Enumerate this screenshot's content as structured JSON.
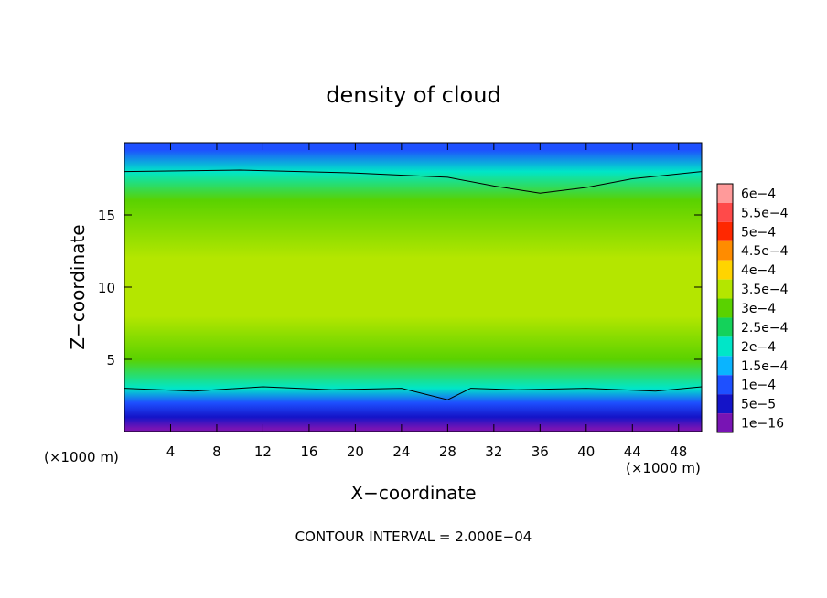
{
  "chart_data": {
    "type": "heatmap",
    "title": "density of cloud",
    "xlabel": "X−coordinate",
    "ylabel": "Z−coordinate",
    "x_unit_left": "(×1000 m)",
    "x_unit_right": "(×1000 m)",
    "xlim": [
      0,
      50
    ],
    "ylim": [
      0,
      20
    ],
    "x_ticks": [
      4,
      8,
      12,
      16,
      20,
      24,
      28,
      32,
      36,
      40,
      44,
      48
    ],
    "y_ticks": [
      5,
      10,
      15
    ],
    "footer": "CONTOUR INTERVAL = 2.000E−04",
    "colorbar": {
      "labels": [
        "6e−4",
        "5.5e−4",
        "5e−4",
        "4.5e−4",
        "4e−4",
        "3.5e−4",
        "3e−4",
        "2.5e−4",
        "2e−4",
        "1.5e−4",
        "1e−4",
        "5e−5",
        "1e−16"
      ],
      "colors": [
        "#ff9a9a",
        "#ff4a4a",
        "#ff2800",
        "#ff8c00",
        "#ffd400",
        "#b4e600",
        "#5ad200",
        "#14d25a",
        "#00e6c8",
        "#0ab4ff",
        "#1e50ff",
        "#1414c8",
        "#7814b4"
      ]
    },
    "field_profile": [
      {
        "z": 0.2,
        "value": "1e−16"
      },
      {
        "z": 1.0,
        "value": "5e−5"
      },
      {
        "z": 2.0,
        "value": "1e−4"
      },
      {
        "z": 3.0,
        "value": "2e−4"
      },
      {
        "z": 5.0,
        "value": "3e−4"
      },
      {
        "z": 8.0,
        "value": "3.5e−4"
      },
      {
        "z": 12.0,
        "value": "3.5e−4"
      },
      {
        "z": 16.0,
        "value": "3e−4"
      },
      {
        "z": 18.0,
        "value": "2e−4"
      },
      {
        "z": 19.5,
        "value": "1e−4"
      }
    ],
    "contour_levels": [
      {
        "label": "2e−4 (upper)",
        "points": [
          [
            0,
            18.0
          ],
          [
            10,
            18.1
          ],
          [
            20,
            17.9
          ],
          [
            28,
            17.6
          ],
          [
            32,
            17.0
          ],
          [
            36,
            16.5
          ],
          [
            40,
            16.9
          ],
          [
            44,
            17.5
          ],
          [
            50,
            18.0
          ]
        ]
      },
      {
        "label": "2e−4 (lower)",
        "points": [
          [
            0,
            3.0
          ],
          [
            6,
            2.8
          ],
          [
            12,
            3.1
          ],
          [
            18,
            2.9
          ],
          [
            24,
            3.0
          ],
          [
            28,
            2.2
          ],
          [
            30,
            3.0
          ],
          [
            34,
            2.9
          ],
          [
            40,
            3.0
          ],
          [
            46,
            2.8
          ],
          [
            50,
            3.1
          ]
        ]
      }
    ]
  }
}
